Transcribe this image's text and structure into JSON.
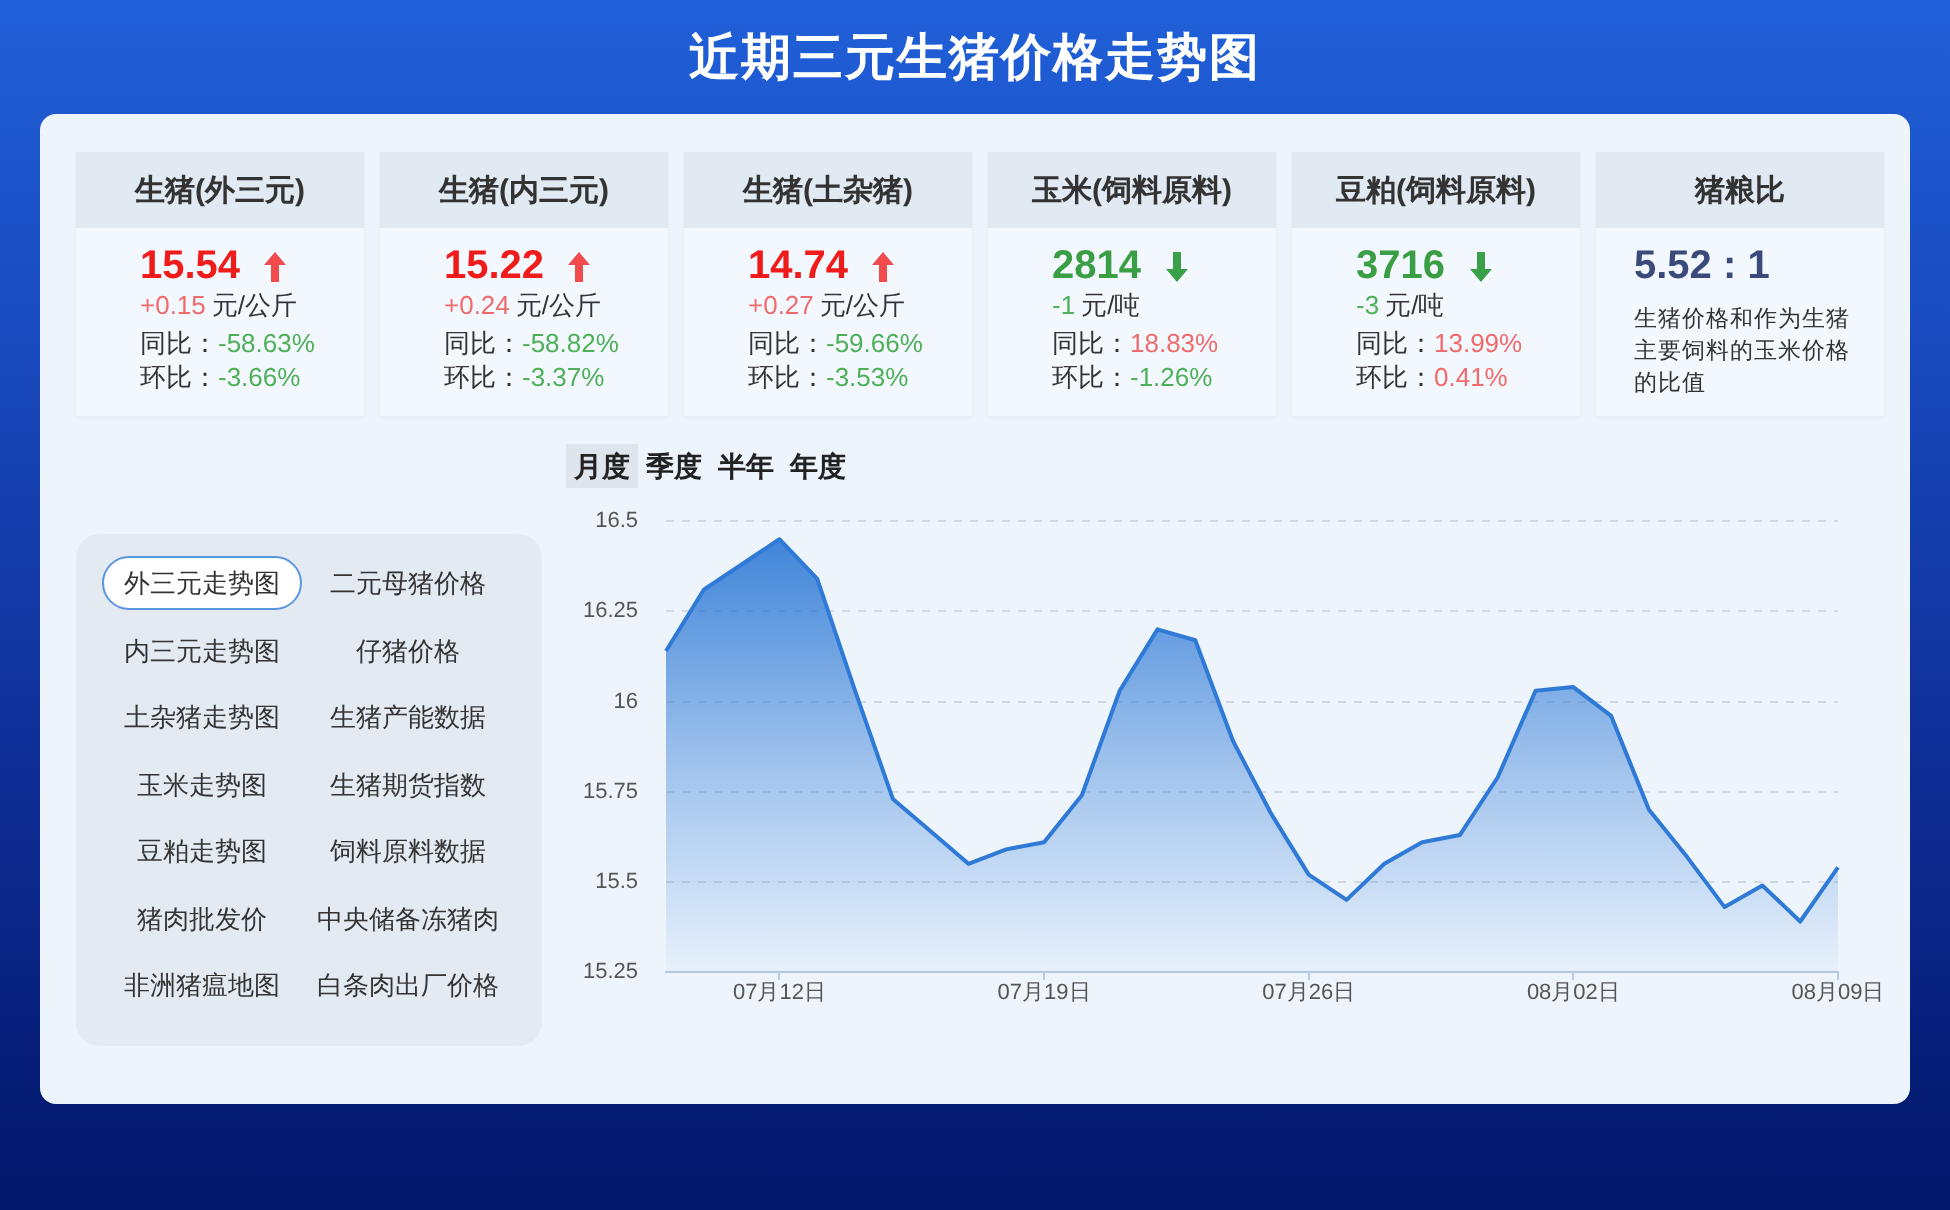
{
  "chart_data": [
    {
      "type": "other",
      "title": "近期三元生猪价格走势图"
    },
    {
      "type": "other",
      "title": "生猪(外三元)",
      "annotations": [
        "15.54",
        "+0.15",
        "元/公斤",
        "同比：",
        "-58.63%",
        "环比：",
        "-3.66%"
      ]
    },
    {
      "type": "other",
      "title": "生猪(内三元)",
      "annotations": [
        "15.22",
        "+0.24",
        "元/公斤",
        "同比：",
        "-58.82%",
        "环比：",
        "-3.37%"
      ]
    },
    {
      "type": "other",
      "title": "生猪(土杂猪)",
      "annotations": [
        "14.74",
        "+0.27",
        "元/公斤",
        "同比：",
        "-59.66%",
        "环比：",
        "-3.53%"
      ]
    },
    {
      "type": "other",
      "title": "玉米(饲料原料)",
      "annotations": [
        "2814",
        "-1",
        "元/吨",
        "同比：",
        "18.83%",
        "环比：",
        "-1.26%"
      ]
    },
    {
      "type": "other",
      "title": "豆粕(饲料原料)",
      "annotations": [
        "3716",
        "-3",
        "元/吨",
        "同比：",
        "13.99%",
        "环比：",
        "0.41%"
      ]
    },
    {
      "type": "other",
      "title": "猪粮比",
      "annotations": [
        "5.52 : 1",
        "生猪价格和作为生猪主要饲料的玉米价格的比值"
      ]
    },
    {
      "type": "other",
      "annotations": [
        "外三元走势图",
        "二元母猪价格",
        "内三元走势图",
        "仔猪价格",
        "土杂猪走势图",
        "生猪产能数据",
        "玉米走势图",
        "生猪期货指数",
        "豆粕走势图",
        "饲料原料数据",
        "猪肉批发价",
        "中央储备冻猪肉",
        "非洲猪瘟地图",
        "白条肉出厂价格"
      ]
    },
    {
      "type": "area",
      "annotations": [
        "月度",
        "季度",
        "半年",
        "年度"
      ],
      "categories": [
        null,
        null,
        null,
        "07月12日",
        null,
        null,
        null,
        null,
        null,
        null,
        "07月19日",
        null,
        null,
        null,
        null,
        null,
        null,
        "07月26日",
        null,
        null,
        null,
        null,
        null,
        null,
        "08月02日",
        null,
        null,
        null,
        null,
        null,
        null,
        "08月09日"
      ],
      "values": [
        16.14,
        16.31,
        16.38,
        16.45,
        16.34,
        16.03,
        15.73,
        15.64,
        15.55,
        15.59,
        15.61,
        15.74,
        16.03,
        16.2,
        16.17,
        15.89,
        15.69,
        15.52,
        15.45,
        15.55,
        15.61,
        15.63,
        15.79,
        16.03,
        16.04,
        15.96,
        15.7,
        15.57,
        15.43,
        15.49,
        15.39,
        15.54
      ],
      "color": "#2f7ad6",
      "ylim": [
        15.25,
        16.5
      ],
      "yticks": [
        15.25,
        15.5,
        15.75,
        16,
        16.25,
        16.5
      ],
      "grid": "y",
      "marker": "none"
    }
  ]
}
